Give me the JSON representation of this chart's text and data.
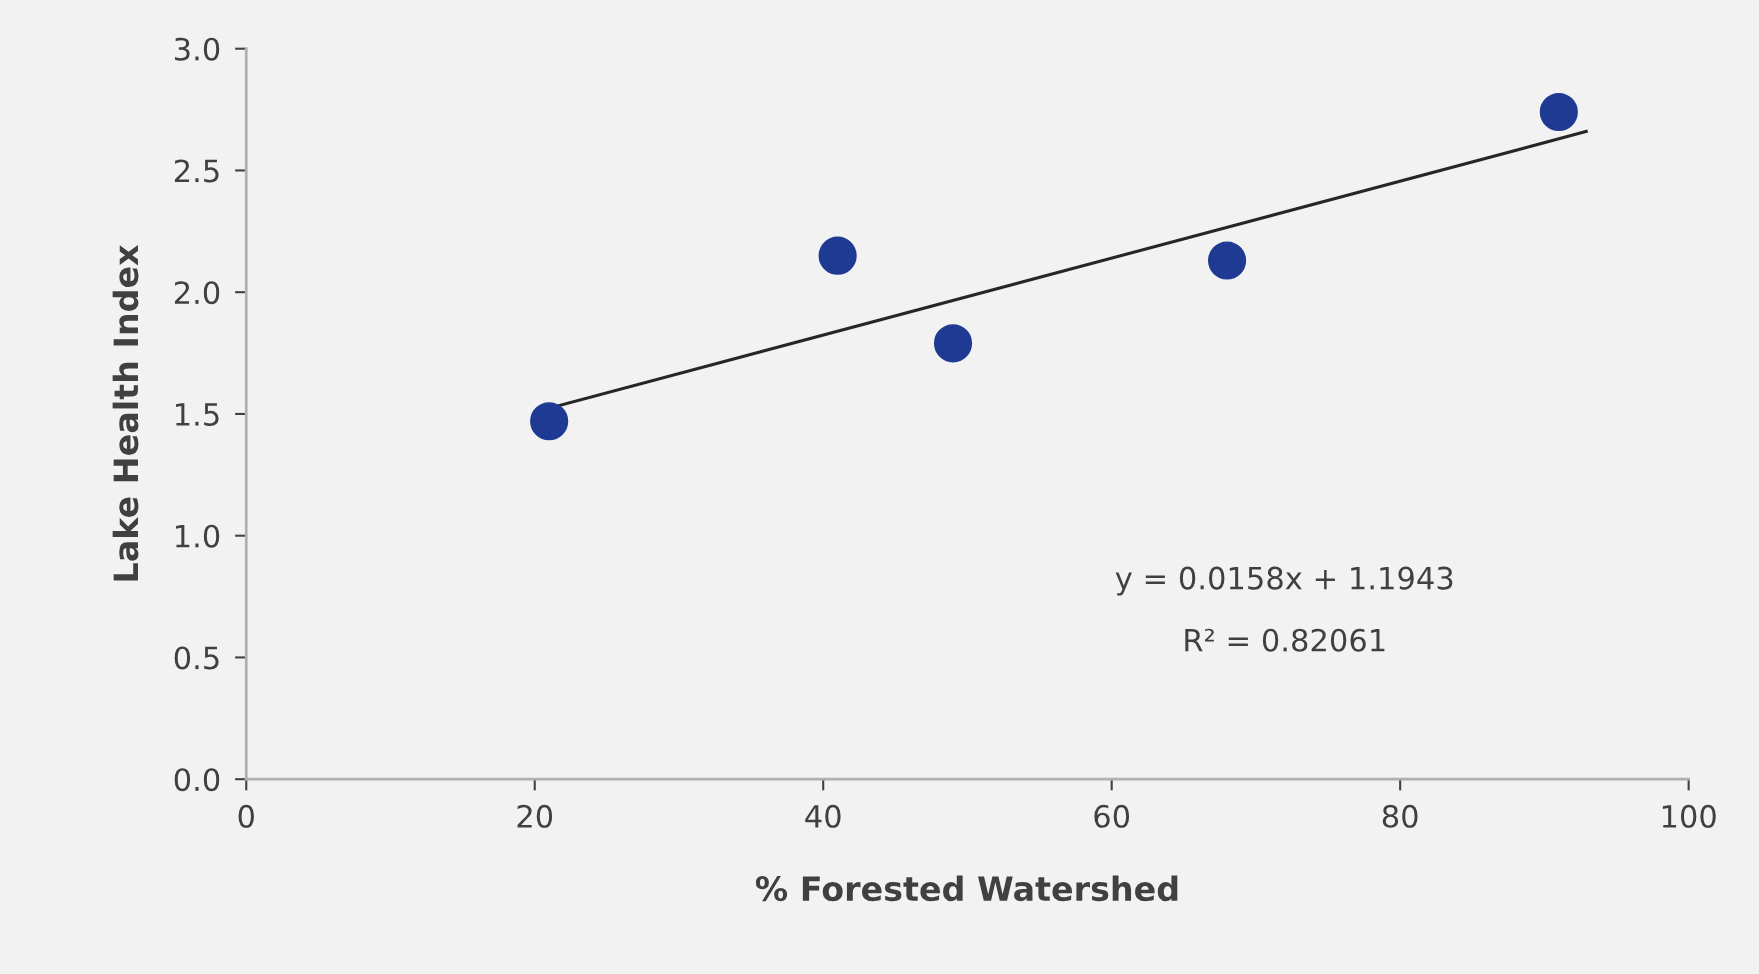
{
  "chart_data": {
    "type": "scatter",
    "xlabel": "% Forested Watershed",
    "ylabel": "Lake Health Index",
    "x": [
      21,
      41,
      49,
      68,
      91
    ],
    "series": [
      {
        "color": "#1f3a93",
        "marker": "circle",
        "values": [
          1.47,
          2.15,
          1.79,
          2.13,
          2.74
        ]
      },
      {
        "type": "line",
        "color": "#262626",
        "x": [
          21.4,
          92.9
        ],
        "values": [
          1.53,
          2.66
        ]
      }
    ],
    "xlim": [
      0,
      100
    ],
    "xticks": [
      0,
      20,
      40,
      60,
      80,
      100
    ],
    "ylim": [
      0,
      3
    ],
    "yticks": [
      {
        "value": 0,
        "label": "0.0"
      },
      {
        "value": 0.5,
        "label": "0.5"
      },
      {
        "value": 1,
        "label": "1.0"
      },
      {
        "value": 1.5,
        "label": "1.5"
      },
      {
        "value": 2,
        "label": "2.0"
      },
      {
        "value": 2.5,
        "label": "2.5"
      },
      {
        "value": 3,
        "label": "3.0"
      }
    ],
    "annotations": [
      "y = 0.0158x + 1.1943",
      "R² = 0.82061"
    ],
    "grid": false,
    "legend": false
  }
}
